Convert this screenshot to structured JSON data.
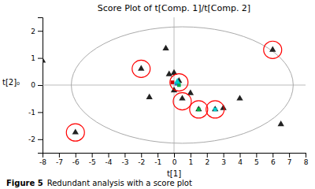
{
  "chart_data": {
    "type": "scatter",
    "title": "Score Plot of t[Comp. 1]/t[Comp. 2]",
    "xlabel": "t[1]",
    "ylabel": "t[2]₀",
    "caption": [
      "Figure 5",
      "Redundant analysis with a score plot"
    ],
    "xlim": [
      -8,
      8
    ],
    "ylim": [
      -2.5,
      2.5
    ],
    "xticks": [
      -8,
      -7,
      -6,
      -5,
      -4,
      -3,
      -2,
      -1,
      0,
      1,
      2,
      3,
      4,
      5,
      6,
      7,
      8
    ],
    "yticks": [
      -2,
      -1,
      0,
      1,
      2
    ],
    "reference_lines": {
      "x": [
        0
      ],
      "y": [
        0
      ],
      "color": "#aaaaaa"
    },
    "ellipse": {
      "cx": 0.5,
      "cy": 0.0,
      "width": 13.5,
      "height": 4.3,
      "color": "#aaaaaa"
    },
    "series": [
      {
        "type": "scatter",
        "marker": "triangle",
        "color": "#222222",
        "x": [
          -8.0,
          -6.0,
          -2.0,
          -1.5,
          -0.5,
          -0.3,
          0.0,
          0.0,
          0.3,
          0.5,
          1.0,
          1.5,
          2.5,
          3.0,
          4.0,
          6.0,
          6.5
        ],
        "values": [
          0.9,
          -1.75,
          0.6,
          -0.45,
          1.35,
          0.4,
          0.45,
          -0.2,
          0.15,
          -0.5,
          -0.3,
          -0.9,
          -0.9,
          -0.85,
          -0.5,
          1.3,
          -1.45
        ]
      },
      {
        "type": "circle",
        "color": "red",
        "x": [
          -6.0,
          -2.0,
          0.3,
          0.5,
          1.5,
          2.5,
          6.0
        ],
        "values": [
          -1.75,
          0.6,
          0.1,
          -0.6,
          -0.9,
          -0.9,
          1.3
        ],
        "radius_x": 0.55,
        "radius_y": 0.32
      },
      {
        "type": "scatter",
        "marker": "square",
        "color": "#cc0000",
        "x": [
          -0.1
        ],
        "values": [
          0.1
        ]
      },
      {
        "type": "scatter",
        "marker": "square",
        "color": "#3366cc",
        "x": [
          0.15
        ],
        "values": [
          0.05
        ]
      },
      {
        "type": "scatter",
        "marker": "square",
        "color": "#00aa44",
        "x": [
          0.3
        ],
        "values": [
          0.0
        ]
      },
      {
        "type": "scatter",
        "marker": "triangle",
        "color": "#00cccc",
        "x": [
          0.2
        ],
        "values": [
          0.12
        ]
      },
      {
        "type": "scatter",
        "marker": "square",
        "color": "#00aa44",
        "x": [
          1.5
        ],
        "values": [
          -0.9
        ]
      },
      {
        "type": "scatter",
        "marker": "square",
        "color": "#00cccc",
        "x": [
          2.5
        ],
        "values": [
          -0.9
        ]
      }
    ]
  }
}
